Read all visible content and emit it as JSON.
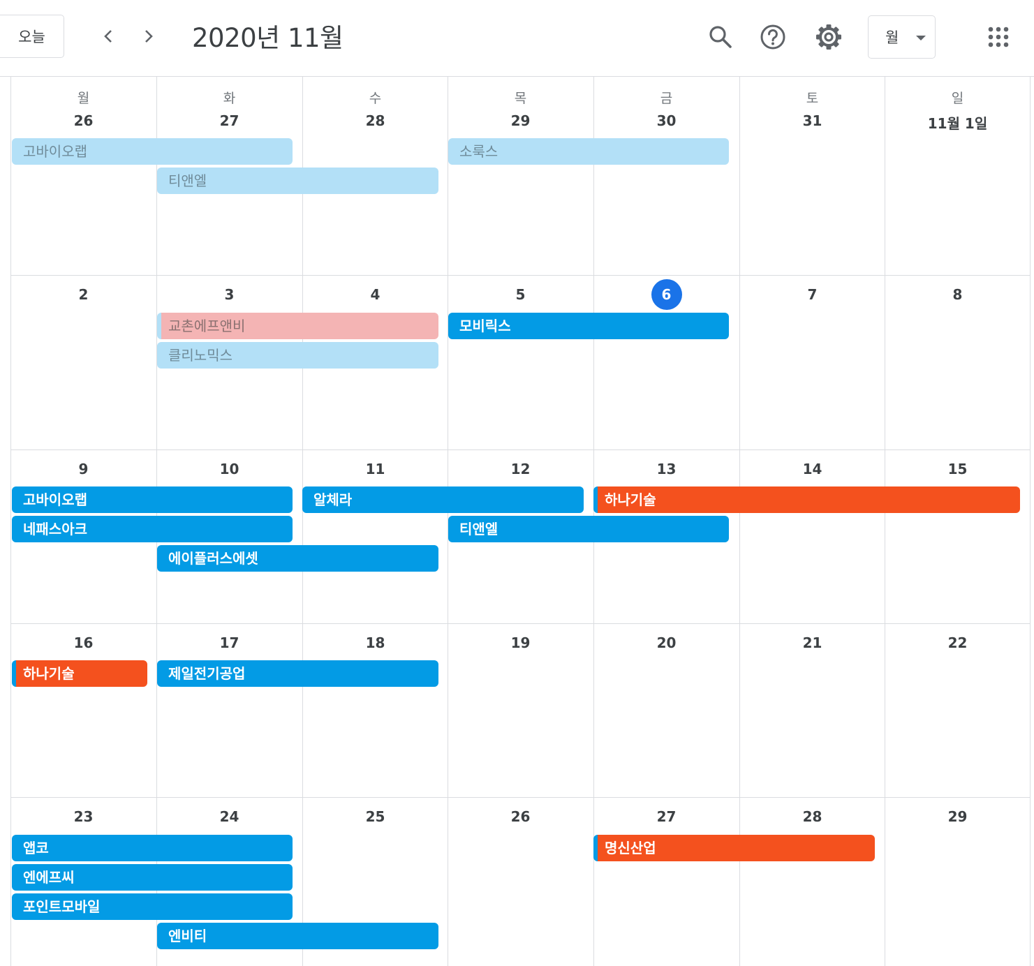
{
  "header": {
    "today_label": "오늘",
    "title": "2020년 11월",
    "view_label": "월",
    "icons": [
      "chevron-left-icon",
      "chevron-right-icon",
      "search-icon",
      "help-icon",
      "gear-icon",
      "apps-grid-icon"
    ]
  },
  "weekdays": [
    "월",
    "화",
    "수",
    "목",
    "금",
    "토",
    "일"
  ],
  "weeks": [
    {
      "days": [
        "26",
        "27",
        "28",
        "29",
        "30",
        "31",
        "11월 1일"
      ]
    },
    {
      "days": [
        "2",
        "3",
        "4",
        "5",
        "6",
        "7",
        "8"
      ]
    },
    {
      "days": [
        "9",
        "10",
        "11",
        "12",
        "13",
        "14",
        "15"
      ]
    },
    {
      "days": [
        "16",
        "17",
        "18",
        "19",
        "20",
        "21",
        "22"
      ]
    },
    {
      "days": [
        "23",
        "24",
        "25",
        "26",
        "27",
        "28",
        "29"
      ]
    }
  ],
  "today": "6",
  "events": [
    {
      "title": "고바이오랩",
      "style": "light"
    },
    {
      "title": "소룩스",
      "style": "light"
    },
    {
      "title": "티앤엘",
      "style": "light"
    },
    {
      "title": "교촌에프앤비",
      "style": "pink"
    },
    {
      "title": "모비릭스",
      "style": "blue"
    },
    {
      "title": "클리노믹스",
      "style": "light"
    },
    {
      "title": "고바이오랩",
      "style": "blue"
    },
    {
      "title": "알체라",
      "style": "blue"
    },
    {
      "title": "하나기술",
      "style": "orange"
    },
    {
      "title": "네패스아크",
      "style": "blue"
    },
    {
      "title": "티앤엘",
      "style": "blue"
    },
    {
      "title": "에이플러스에셋",
      "style": "blue"
    },
    {
      "title": "하나기술",
      "style": "orange"
    },
    {
      "title": "제일전기공업",
      "style": "blue"
    },
    {
      "title": "앱코",
      "style": "blue"
    },
    {
      "title": "명신산업",
      "style": "orange"
    },
    {
      "title": "엔에프씨",
      "style": "blue"
    },
    {
      "title": "포인트모바일",
      "style": "blue"
    },
    {
      "title": "엔비티",
      "style": "blue"
    }
  ],
  "colors": {
    "today_circle": "#1a73e8",
    "event_blue": "#039be5",
    "event_orange": "#f4511e",
    "event_light": "#b3e0f7",
    "event_pink": "#f4b4b4"
  }
}
